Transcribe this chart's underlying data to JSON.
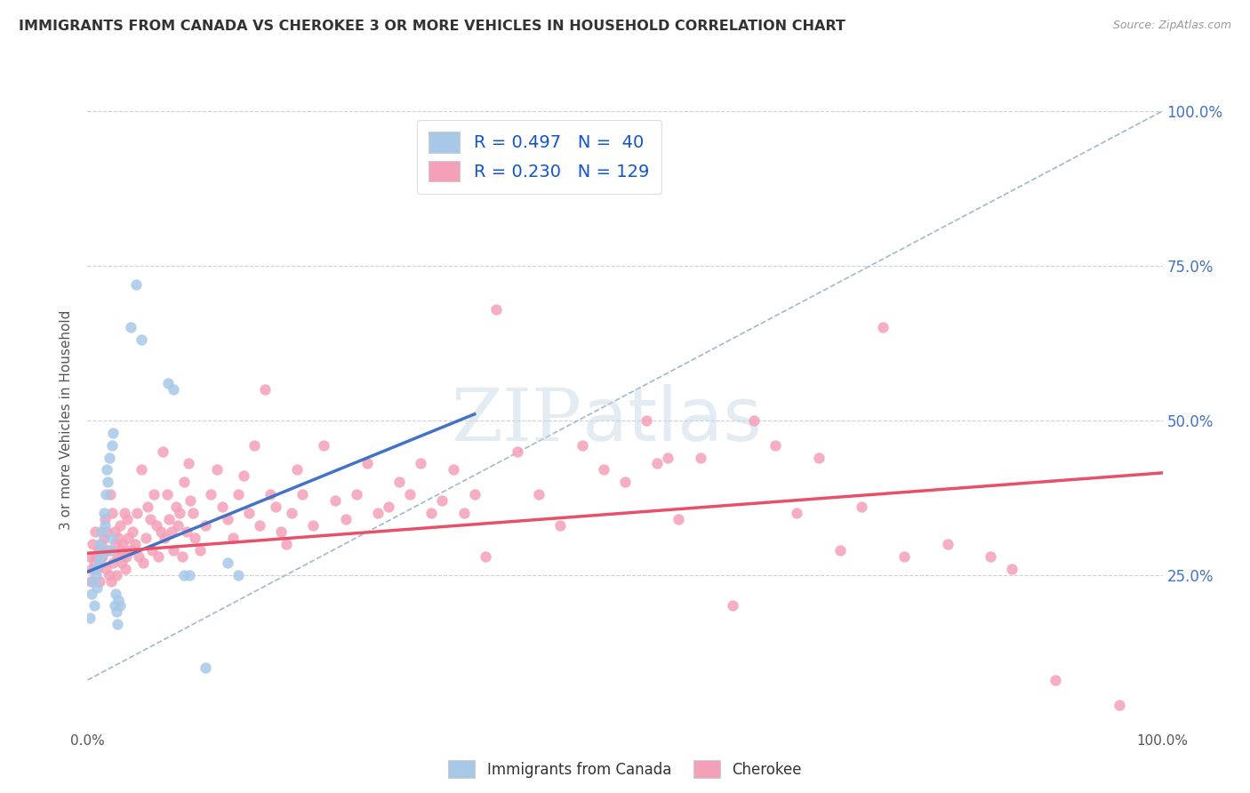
{
  "title": "IMMIGRANTS FROM CANADA VS CHEROKEE 3 OR MORE VEHICLES IN HOUSEHOLD CORRELATION CHART",
  "source": "Source: ZipAtlas.com",
  "ylabel": "3 or more Vehicles in Household",
  "xlim": [
    0,
    1
  ],
  "ylim": [
    0,
    1
  ],
  "legend_r_values": [
    "0.497",
    "0.230"
  ],
  "legend_n_values": [
    "40",
    "129"
  ],
  "blue_color": "#a8c8e8",
  "pink_color": "#f4a0b8",
  "blue_line_color": "#4472c4",
  "pink_line_color": "#e8506a",
  "dashed_line_color": "#a0b8d0",
  "watermark_color": "#c8d8e8",
  "background_color": "#ffffff",
  "grid_color": "#d0d0d0",
  "ytick_color": "#4472c4",
  "blue_scatter": [
    [
      0.002,
      0.18
    ],
    [
      0.004,
      0.22
    ],
    [
      0.005,
      0.24
    ],
    [
      0.006,
      0.2
    ],
    [
      0.007,
      0.26
    ],
    [
      0.008,
      0.25
    ],
    [
      0.009,
      0.23
    ],
    [
      0.01,
      0.27
    ],
    [
      0.011,
      0.3
    ],
    [
      0.012,
      0.28
    ],
    [
      0.013,
      0.32
    ],
    [
      0.014,
      0.29
    ],
    [
      0.015,
      0.35
    ],
    [
      0.016,
      0.33
    ],
    [
      0.017,
      0.38
    ],
    [
      0.018,
      0.42
    ],
    [
      0.019,
      0.4
    ],
    [
      0.02,
      0.44
    ],
    [
      0.021,
      0.29
    ],
    [
      0.022,
      0.31
    ],
    [
      0.023,
      0.46
    ],
    [
      0.024,
      0.48
    ],
    [
      0.025,
      0.2
    ],
    [
      0.026,
      0.22
    ],
    [
      0.027,
      0.19
    ],
    [
      0.028,
      0.17
    ],
    [
      0.029,
      0.21
    ],
    [
      0.03,
      0.2
    ],
    [
      0.04,
      0.65
    ],
    [
      0.045,
      0.72
    ],
    [
      0.05,
      0.63
    ],
    [
      0.075,
      0.56
    ],
    [
      0.08,
      0.55
    ],
    [
      0.09,
      0.25
    ],
    [
      0.095,
      0.25
    ],
    [
      0.11,
      0.1
    ],
    [
      0.13,
      0.27
    ],
    [
      0.14,
      0.25
    ]
  ],
  "pink_scatter": [
    [
      0.002,
      0.28
    ],
    [
      0.003,
      0.24
    ],
    [
      0.004,
      0.26
    ],
    [
      0.005,
      0.3
    ],
    [
      0.006,
      0.27
    ],
    [
      0.007,
      0.32
    ],
    [
      0.008,
      0.28
    ],
    [
      0.009,
      0.26
    ],
    [
      0.01,
      0.29
    ],
    [
      0.011,
      0.24
    ],
    [
      0.012,
      0.27
    ],
    [
      0.013,
      0.3
    ],
    [
      0.014,
      0.28
    ],
    [
      0.015,
      0.31
    ],
    [
      0.016,
      0.34
    ],
    [
      0.017,
      0.26
    ],
    [
      0.018,
      0.32
    ],
    [
      0.019,
      0.29
    ],
    [
      0.02,
      0.25
    ],
    [
      0.021,
      0.38
    ],
    [
      0.022,
      0.24
    ],
    [
      0.023,
      0.35
    ],
    [
      0.024,
      0.27
    ],
    [
      0.025,
      0.32
    ],
    [
      0.026,
      0.3
    ],
    [
      0.027,
      0.25
    ],
    [
      0.028,
      0.28
    ],
    [
      0.029,
      0.31
    ],
    [
      0.03,
      0.33
    ],
    [
      0.031,
      0.29
    ],
    [
      0.032,
      0.27
    ],
    [
      0.033,
      0.3
    ],
    [
      0.034,
      0.35
    ],
    [
      0.035,
      0.26
    ],
    [
      0.036,
      0.28
    ],
    [
      0.037,
      0.34
    ],
    [
      0.038,
      0.31
    ],
    [
      0.04,
      0.29
    ],
    [
      0.042,
      0.32
    ],
    [
      0.044,
      0.3
    ],
    [
      0.046,
      0.35
    ],
    [
      0.048,
      0.28
    ],
    [
      0.05,
      0.42
    ],
    [
      0.052,
      0.27
    ],
    [
      0.054,
      0.31
    ],
    [
      0.056,
      0.36
    ],
    [
      0.058,
      0.34
    ],
    [
      0.06,
      0.29
    ],
    [
      0.062,
      0.38
    ],
    [
      0.064,
      0.33
    ],
    [
      0.066,
      0.28
    ],
    [
      0.068,
      0.32
    ],
    [
      0.07,
      0.45
    ],
    [
      0.072,
      0.31
    ],
    [
      0.074,
      0.38
    ],
    [
      0.076,
      0.34
    ],
    [
      0.078,
      0.32
    ],
    [
      0.08,
      0.29
    ],
    [
      0.082,
      0.36
    ],
    [
      0.084,
      0.33
    ],
    [
      0.086,
      0.35
    ],
    [
      0.088,
      0.28
    ],
    [
      0.09,
      0.4
    ],
    [
      0.092,
      0.32
    ],
    [
      0.094,
      0.43
    ],
    [
      0.096,
      0.37
    ],
    [
      0.098,
      0.35
    ],
    [
      0.1,
      0.31
    ],
    [
      0.105,
      0.29
    ],
    [
      0.11,
      0.33
    ],
    [
      0.115,
      0.38
    ],
    [
      0.12,
      0.42
    ],
    [
      0.125,
      0.36
    ],
    [
      0.13,
      0.34
    ],
    [
      0.135,
      0.31
    ],
    [
      0.14,
      0.38
    ],
    [
      0.145,
      0.41
    ],
    [
      0.15,
      0.35
    ],
    [
      0.155,
      0.46
    ],
    [
      0.16,
      0.33
    ],
    [
      0.165,
      0.55
    ],
    [
      0.17,
      0.38
    ],
    [
      0.175,
      0.36
    ],
    [
      0.18,
      0.32
    ],
    [
      0.185,
      0.3
    ],
    [
      0.19,
      0.35
    ],
    [
      0.195,
      0.42
    ],
    [
      0.2,
      0.38
    ],
    [
      0.21,
      0.33
    ],
    [
      0.22,
      0.46
    ],
    [
      0.23,
      0.37
    ],
    [
      0.24,
      0.34
    ],
    [
      0.25,
      0.38
    ],
    [
      0.26,
      0.43
    ],
    [
      0.27,
      0.35
    ],
    [
      0.28,
      0.36
    ],
    [
      0.29,
      0.4
    ],
    [
      0.3,
      0.38
    ],
    [
      0.31,
      0.43
    ],
    [
      0.32,
      0.35
    ],
    [
      0.33,
      0.37
    ],
    [
      0.34,
      0.42
    ],
    [
      0.35,
      0.35
    ],
    [
      0.36,
      0.38
    ],
    [
      0.37,
      0.28
    ],
    [
      0.38,
      0.68
    ],
    [
      0.4,
      0.45
    ],
    [
      0.42,
      0.38
    ],
    [
      0.44,
      0.33
    ],
    [
      0.46,
      0.46
    ],
    [
      0.48,
      0.42
    ],
    [
      0.5,
      0.4
    ],
    [
      0.52,
      0.5
    ],
    [
      0.53,
      0.43
    ],
    [
      0.54,
      0.44
    ],
    [
      0.55,
      0.34
    ],
    [
      0.57,
      0.44
    ],
    [
      0.6,
      0.2
    ],
    [
      0.62,
      0.5
    ],
    [
      0.64,
      0.46
    ],
    [
      0.66,
      0.35
    ],
    [
      0.68,
      0.44
    ],
    [
      0.7,
      0.29
    ],
    [
      0.72,
      0.36
    ],
    [
      0.74,
      0.65
    ],
    [
      0.76,
      0.28
    ],
    [
      0.8,
      0.3
    ],
    [
      0.84,
      0.28
    ],
    [
      0.86,
      0.26
    ],
    [
      0.9,
      0.08
    ],
    [
      0.96,
      0.04
    ]
  ],
  "blue_line": [
    [
      0.0,
      0.255
    ],
    [
      0.36,
      0.51
    ]
  ],
  "pink_line": [
    [
      0.0,
      0.285
    ],
    [
      1.0,
      0.415
    ]
  ],
  "diag_line": [
    [
      0.0,
      0.08
    ],
    [
      1.0,
      1.0
    ]
  ]
}
